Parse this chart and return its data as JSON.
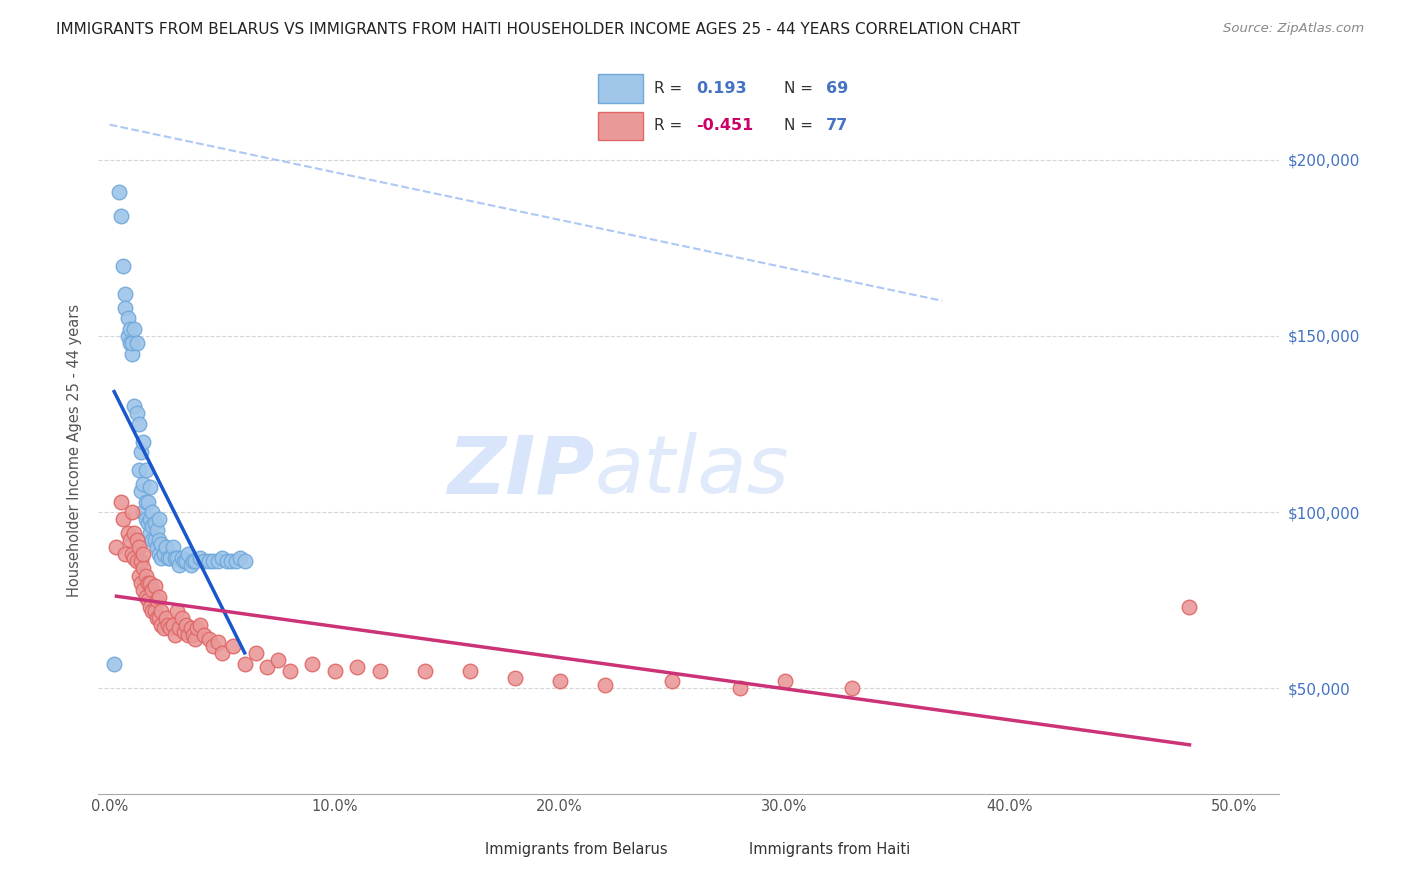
{
  "title": "IMMIGRANTS FROM BELARUS VS IMMIGRANTS FROM HAITI HOUSEHOLDER INCOME AGES 25 - 44 YEARS CORRELATION CHART",
  "source": "Source: ZipAtlas.com",
  "ylabel": "Householder Income Ages 25 - 44 years",
  "ylabel_ticks": [
    "$50,000",
    "$100,000",
    "$150,000",
    "$200,000"
  ],
  "ylabel_vals": [
    50000,
    100000,
    150000,
    200000
  ],
  "xlabel_ticks": [
    "0.0%",
    "10.0%",
    "20.0%",
    "30.0%",
    "40.0%",
    "50.0%"
  ],
  "xlabel_vals": [
    0.0,
    0.1,
    0.2,
    0.3,
    0.4,
    0.5
  ],
  "ylim": [
    20000,
    215000
  ],
  "xlim": [
    -0.005,
    0.52
  ],
  "r_belarus": "0.193",
  "n_belarus": "69",
  "r_haiti": "-0.451",
  "n_haiti": "77",
  "legend_label_belarus": "Immigrants from Belarus",
  "legend_label_haiti": "Immigrants from Haiti",
  "color_belarus_fill": "#9fc5e8",
  "color_belarus_edge": "#6fa8dc",
  "color_haiti_fill": "#ea9999",
  "color_haiti_edge": "#e06666",
  "color_line_belarus": "#1a56cc",
  "color_line_haiti": "#cc3377",
  "color_dashed": "#a4c2f4",
  "background_color": "#ffffff",
  "grid_color": "#cccccc",
  "title_color": "#222222",
  "right_tick_color": "#4472c4",
  "belarus_x": [
    0.002,
    0.004,
    0.005,
    0.006,
    0.007,
    0.007,
    0.008,
    0.008,
    0.009,
    0.009,
    0.01,
    0.01,
    0.011,
    0.011,
    0.012,
    0.012,
    0.013,
    0.013,
    0.014,
    0.014,
    0.015,
    0.015,
    0.015,
    0.016,
    0.016,
    0.016,
    0.017,
    0.017,
    0.018,
    0.018,
    0.018,
    0.019,
    0.019,
    0.019,
    0.02,
    0.02,
    0.021,
    0.021,
    0.022,
    0.022,
    0.022,
    0.023,
    0.023,
    0.024,
    0.025,
    0.026,
    0.027,
    0.028,
    0.029,
    0.03,
    0.031,
    0.032,
    0.033,
    0.034,
    0.035,
    0.036,
    0.037,
    0.038,
    0.04,
    0.042,
    0.044,
    0.046,
    0.048,
    0.05,
    0.052,
    0.054,
    0.056,
    0.058,
    0.06
  ],
  "belarus_y": [
    57000,
    191000,
    184000,
    170000,
    162000,
    158000,
    155000,
    150000,
    148000,
    152000,
    145000,
    148000,
    130000,
    152000,
    128000,
    148000,
    112000,
    125000,
    106000,
    117000,
    120000,
    100000,
    108000,
    98000,
    103000,
    112000,
    97000,
    103000,
    94000,
    98000,
    107000,
    92000,
    96000,
    100000,
    92000,
    97000,
    90000,
    95000,
    88000,
    92000,
    98000,
    87000,
    91000,
    88000,
    90000,
    87000,
    87000,
    90000,
    87000,
    87000,
    85000,
    87000,
    86000,
    86000,
    88000,
    85000,
    86000,
    86000,
    87000,
    86000,
    86000,
    86000,
    86000,
    87000,
    86000,
    86000,
    86000,
    87000,
    86000
  ],
  "haiti_x": [
    0.003,
    0.005,
    0.006,
    0.007,
    0.008,
    0.009,
    0.01,
    0.01,
    0.011,
    0.011,
    0.012,
    0.012,
    0.013,
    0.013,
    0.014,
    0.014,
    0.015,
    0.015,
    0.015,
    0.016,
    0.016,
    0.017,
    0.017,
    0.018,
    0.018,
    0.019,
    0.019,
    0.02,
    0.02,
    0.021,
    0.021,
    0.022,
    0.022,
    0.023,
    0.023,
    0.024,
    0.025,
    0.026,
    0.027,
    0.028,
    0.029,
    0.03,
    0.031,
    0.032,
    0.033,
    0.034,
    0.035,
    0.036,
    0.037,
    0.038,
    0.039,
    0.04,
    0.042,
    0.044,
    0.046,
    0.048,
    0.05,
    0.055,
    0.06,
    0.065,
    0.07,
    0.075,
    0.08,
    0.09,
    0.1,
    0.11,
    0.12,
    0.14,
    0.16,
    0.18,
    0.2,
    0.22,
    0.25,
    0.28,
    0.3,
    0.33,
    0.48
  ],
  "haiti_y": [
    90000,
    103000,
    98000,
    88000,
    94000,
    92000,
    88000,
    100000,
    87000,
    94000,
    86000,
    92000,
    82000,
    90000,
    80000,
    86000,
    78000,
    84000,
    88000,
    76000,
    82000,
    75000,
    80000,
    73000,
    80000,
    72000,
    78000,
    72000,
    79000,
    70000,
    75000,
    70000,
    76000,
    68000,
    72000,
    67000,
    70000,
    68000,
    67000,
    68000,
    65000,
    72000,
    67000,
    70000,
    66000,
    68000,
    65000,
    67000,
    65000,
    64000,
    67000,
    68000,
    65000,
    64000,
    62000,
    63000,
    60000,
    62000,
    57000,
    60000,
    56000,
    58000,
    55000,
    57000,
    55000,
    56000,
    55000,
    55000,
    55000,
    53000,
    52000,
    51000,
    52000,
    50000,
    52000,
    50000,
    73000
  ]
}
